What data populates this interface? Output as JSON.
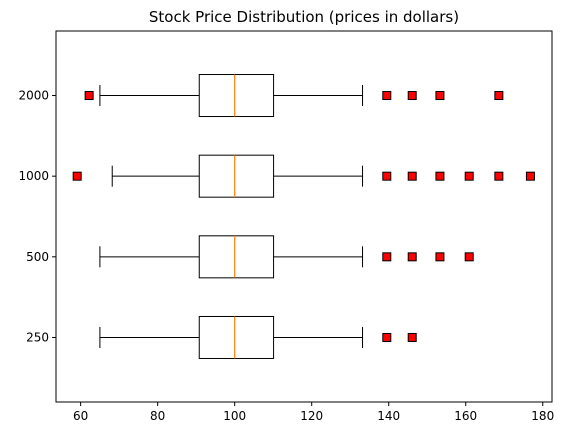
{
  "chart_data": {
    "type": "box",
    "orientation": "horizontal",
    "title": "Stock Price Distribution (prices in dollars)",
    "xlabel": "",
    "ylabel": "",
    "xlim": [
      53.6,
      182.4
    ],
    "xticks": [
      60,
      80,
      100,
      120,
      140,
      160,
      180
    ],
    "grid": false,
    "categories": [
      "250",
      "500",
      "1000",
      "2000"
    ],
    "median_color": "#ff7f0e",
    "outlier_color": "#ff0000",
    "boxes": [
      {
        "name": "250",
        "whisker_low": 65,
        "q1": 90.8,
        "median": 100,
        "q3": 110.1,
        "whisker_high": 133.2,
        "outliers": [
          139.5,
          146.1
        ]
      },
      {
        "name": "500",
        "whisker_low": 65,
        "q1": 90.8,
        "median": 100,
        "q3": 110.1,
        "whisker_high": 133.2,
        "outliers": [
          139.5,
          146.1,
          153.3,
          160.9
        ]
      },
      {
        "name": "1000",
        "whisker_low": 68.2,
        "q1": 90.8,
        "median": 100,
        "q3": 110.1,
        "whisker_high": 133.2,
        "outliers": [
          59.1,
          139.5,
          146.1,
          153.3,
          160.9,
          168.6,
          176.8
        ]
      },
      {
        "name": "2000",
        "whisker_low": 65,
        "q1": 90.8,
        "median": 100,
        "q3": 110.1,
        "whisker_high": 133.2,
        "outliers": [
          62.2,
          139.5,
          146.1,
          153.3,
          168.6
        ]
      }
    ]
  }
}
